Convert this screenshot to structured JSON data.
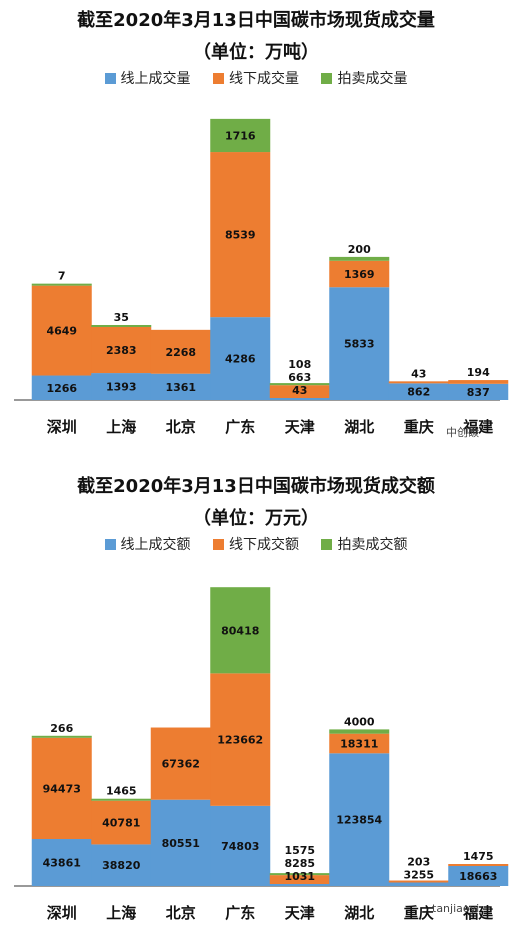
{
  "colors": {
    "online": "#5b9bd5",
    "offline": "#ed7d31",
    "auction": "#70ad47",
    "axis": "#333333"
  },
  "watermark": {
    "brand": "中创碳",
    "site": "tanjiaoyi"
  },
  "chart_data": [
    {
      "type": "bar",
      "stacked": true,
      "title": "截至2020年3月13日中国碳市场现货成交量",
      "subtitle": "（单位：万吨）",
      "legend_position": "top",
      "categories": [
        "深圳",
        "上海",
        "北京",
        "广东",
        "天津",
        "湖北",
        "重庆",
        "福建"
      ],
      "series": [
        {
          "name": "线上成交量",
          "values": [
            1266,
            1393,
            1361,
            4286,
            43,
            5833,
            862,
            837
          ]
        },
        {
          "name": "线下成交量",
          "values": [
            4649,
            2383,
            2268,
            8539,
            663,
            1369,
            43,
            194
          ]
        },
        {
          "name": "拍卖成交量",
          "values": [
            7,
            35,
            null,
            1716,
            108,
            200,
            null,
            null
          ]
        }
      ],
      "ylim": [
        0,
        15000
      ]
    },
    {
      "type": "bar",
      "stacked": true,
      "title": "截至2020年3月13日中国碳市场现货成交额",
      "subtitle": "（单位：万元）",
      "legend_position": "top",
      "categories": [
        "深圳",
        "上海",
        "北京",
        "广东",
        "天津",
        "湖北",
        "重庆",
        "福建"
      ],
      "series": [
        {
          "name": "线上成交额",
          "values": [
            43861,
            38820,
            80551,
            74803,
            1031,
            123854,
            3255,
            18663
          ]
        },
        {
          "name": "线下成交额",
          "values": [
            94473,
            40781,
            67362,
            123662,
            8285,
            18311,
            203,
            1475
          ]
        },
        {
          "name": "拍卖成交额",
          "values": [
            266,
            1465,
            null,
            80418,
            1575,
            4000,
            null,
            null
          ]
        }
      ],
      "ylim": [
        0,
        280000
      ]
    }
  ]
}
